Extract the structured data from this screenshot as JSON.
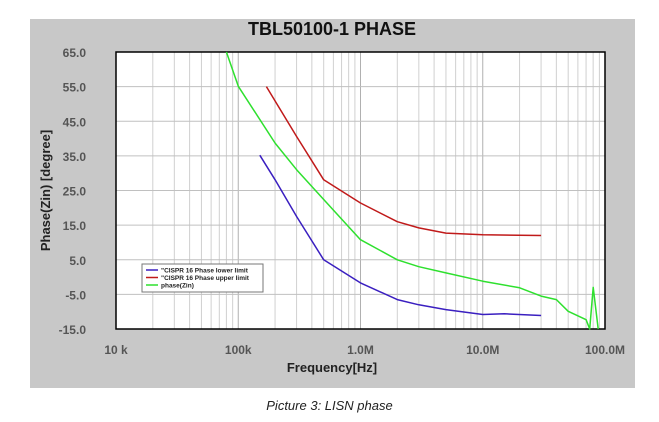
{
  "chart_data": {
    "type": "line",
    "title": "TBL50100-1 PHASE",
    "xlabel": "Frequency[Hz]",
    "ylabel": "Phase(Zin) [degree]",
    "xscale": "log",
    "xlim": [
      10000,
      100000000
    ],
    "ylim": [
      -15,
      65
    ],
    "xticks": [
      10000,
      100000,
      1000000,
      10000000,
      100000000
    ],
    "xtick_labels": [
      "10 k",
      "100k",
      "1.0M",
      "10.0M",
      "100.0M"
    ],
    "yticks": [
      65,
      55,
      45,
      35,
      25,
      15,
      5,
      -5,
      -15
    ],
    "ytick_labels": [
      "65.0",
      "55.0",
      "45.0",
      "35.0",
      "25.0",
      "15.0",
      "5.0",
      "-5.0",
      "-15.0"
    ],
    "grid": true,
    "legend_position": "lower-left",
    "series": [
      {
        "name": "\"CISPR 16 Phase lower limit",
        "color": "#3a1fc0",
        "x": [
          150000,
          200000,
          300000,
          500000,
          1000000,
          2000000,
          3000000,
          5000000,
          10000000,
          15000000,
          30000000
        ],
        "y": [
          35.2,
          28.1,
          17.5,
          5.0,
          -1.7,
          -6.5,
          -8.0,
          -9.4,
          -10.8,
          -10.6,
          -11.1
        ]
      },
      {
        "name": "\"CISPR 16 Phase upper limit",
        "color": "#c01a1a",
        "x": [
          170000,
          300000,
          500000,
          1000000,
          2000000,
          3000000,
          5000000,
          10000000,
          30000000
        ],
        "y": [
          55.0,
          40.6,
          28.1,
          21.4,
          16.0,
          14.2,
          12.7,
          12.2,
          12.0
        ]
      },
      {
        "name": "phase(Zin)",
        "color": "#2ee02e",
        "x": [
          80000,
          100000,
          200000,
          300000,
          500000,
          1000000,
          2000000,
          3000000,
          5000000,
          10000000,
          20000000,
          30000000,
          40000000,
          50000000,
          70000000,
          75000000,
          80000000,
          88000000
        ],
        "y": [
          65.0,
          55.1,
          38.7,
          31.0,
          22.4,
          10.8,
          5.0,
          3.0,
          1.2,
          -1.2,
          -3.1,
          -5.5,
          -6.5,
          -9.9,
          -12.3,
          -15.0,
          -3.0,
          -15.0
        ]
      }
    ]
  },
  "caption": "Picture 3: LISN phase"
}
